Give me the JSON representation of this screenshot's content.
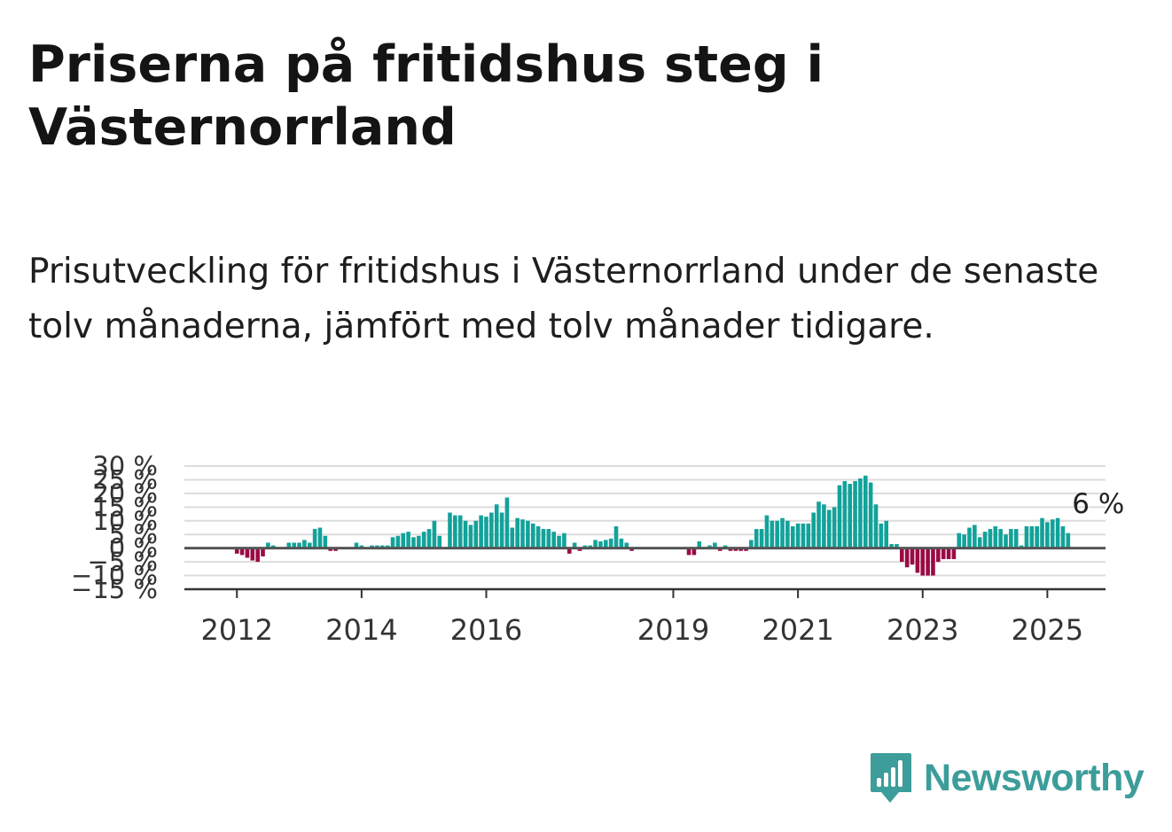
{
  "header": {
    "title": "Priserna på fritidshus steg i Västernorrland",
    "subtitle": "Prisutveckling för fritidshus i Västernorrland under de senaste tolv månaderna, jämfört med tolv månader tidigare."
  },
  "brand": {
    "name": "Newsworthy",
    "color": "#3c9d9a"
  },
  "chart_data": {
    "type": "bar",
    "ylim": [
      -15,
      30
    ],
    "yticks": [
      -15,
      -10,
      -5,
      0,
      5,
      10,
      15,
      20,
      25,
      30
    ],
    "ytick_labels": [
      "−15 %",
      "−10 %",
      "−5 %",
      "0 %",
      "5 %",
      "10 %",
      "15 %",
      "20 %",
      "25 %",
      "30 %"
    ],
    "xticks": [
      {
        "label": "2012",
        "index": 2
      },
      {
        "label": "2014",
        "index": 26
      },
      {
        "label": "2016",
        "index": 50
      },
      {
        "label": "2019",
        "index": 86
      },
      {
        "label": "2021",
        "index": 110
      },
      {
        "label": "2023",
        "index": 134
      },
      {
        "label": "2025",
        "index": 158
      }
    ],
    "annotation": {
      "text": "6 %",
      "index": 162
    },
    "grid": true,
    "colors": {
      "positive": "#12a29a",
      "negative": "#9b0a45",
      "grid": "#dcdcdc",
      "axis": "#555555",
      "text": "#333333"
    },
    "start": "2011-11",
    "values": [
      0,
      0,
      -2,
      -2.5,
      -3.5,
      -4.5,
      -5,
      -3,
      2,
      1,
      0,
      0,
      2,
      2,
      2,
      3,
      2,
      7,
      7.5,
      4.5,
      -1,
      -1,
      0,
      0,
      0,
      2,
      1,
      0,
      1,
      1,
      1,
      1,
      4,
      4.5,
      5.5,
      6,
      4,
      4.5,
      6,
      7,
      10,
      4.5,
      0,
      13,
      12,
      12,
      10,
      8.5,
      10,
      12,
      11.5,
      13,
      16,
      13,
      18.5,
      7.5,
      11,
      10.5,
      10,
      9,
      8,
      7,
      7,
      6,
      4.5,
      5.5,
      -2,
      2,
      -1,
      1,
      1,
      3,
      2.5,
      3,
      3.5,
      8,
      3.5,
      2,
      -1,
      0,
      0,
      0,
      0,
      0,
      0,
      0,
      0,
      0,
      0,
      -2.5,
      -2.5,
      2.5,
      0,
      1,
      2,
      -1,
      1,
      -1,
      -1,
      -1,
      -1,
      3,
      7,
      7,
      12,
      10,
      10,
      11,
      10,
      8,
      9,
      9,
      9,
      13,
      17,
      16,
      14,
      15,
      23,
      24.5,
      23.5,
      24.5,
      25.5,
      26.5,
      24,
      16,
      9,
      10,
      1.5,
      1.5,
      -5,
      -7,
      -6,
      -9,
      -10,
      -10,
      -10,
      -5,
      -4,
      -4,
      -4,
      5.5,
      5,
      7.5,
      8.5,
      4,
      6,
      7,
      8,
      7,
      5,
      7,
      7,
      1,
      8,
      8,
      8,
      11,
      9.5,
      10.5,
      11,
      8,
      5.5
    ]
  }
}
